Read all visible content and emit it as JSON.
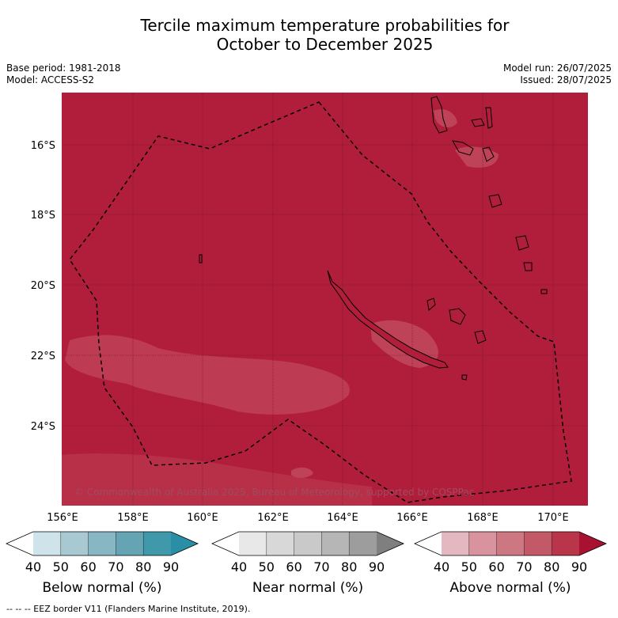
{
  "title": {
    "line1": "Tercile maximum temperature probabilities for",
    "line2": "October to December 2025"
  },
  "meta": {
    "base_period": "Base period: 1981-2018",
    "model": "Model: ACCESS-S2",
    "model_run": "Model run: 26/07/2025",
    "issued": "Issued: 28/07/2025"
  },
  "map": {
    "background_color": "#b01e3b",
    "lon_labels": [
      "156°E",
      "158°E",
      "160°E",
      "162°E",
      "164°E",
      "166°E",
      "168°E",
      "170°E"
    ],
    "lat_labels": [
      "16°S",
      "18°S",
      "20°S",
      "22°S",
      "24°S"
    ],
    "copyright": "© Commonwealth of Australia 2025, Bureau of Meteorology, supported by COSPPac"
  },
  "colorbars": [
    {
      "label": "Below normal (%)",
      "ticks": [
        "40",
        "50",
        "60",
        "70",
        "80",
        "90"
      ],
      "colors": [
        "#ffffff",
        "#cfe4ea",
        "#a8c9d1",
        "#88b7c4",
        "#65a4b3",
        "#3f99ab",
        "#2a8ea5"
      ]
    },
    {
      "label": "Near normal (%)",
      "ticks": [
        "40",
        "50",
        "60",
        "70",
        "80",
        "90"
      ],
      "colors": [
        "#ffffff",
        "#e8e8e8",
        "#d8d8d8",
        "#c9c9c9",
        "#b6b6b6",
        "#9d9d9d",
        "#7f7f7f"
      ]
    },
    {
      "label": "Above normal (%)",
      "ticks": [
        "40",
        "50",
        "60",
        "70",
        "80",
        "90"
      ],
      "colors": [
        "#ffffff",
        "#e3b8c0",
        "#d9939f",
        "#cd7782",
        "#c35967",
        "#b93549",
        "#a8112f"
      ]
    }
  ],
  "footer": "--  --  -- EEZ border V11 (Flanders Marine Institute, 2019)."
}
